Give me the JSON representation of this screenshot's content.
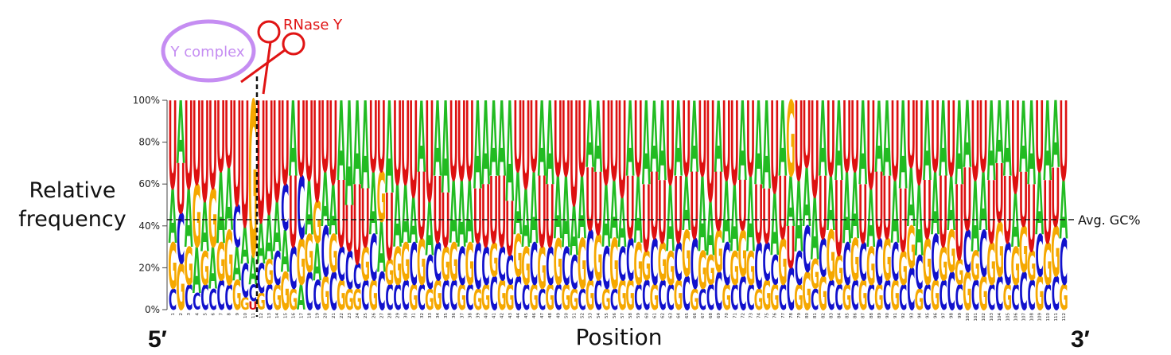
{
  "chart_data": {
    "type": "sequence-logo",
    "title": "",
    "xlabel": "Position",
    "ylabel_lines": [
      "Relative",
      "frequency"
    ],
    "y_ticks": [
      "0%",
      "20%",
      "40%",
      "60%",
      "80%",
      "100%"
    ],
    "ylim": [
      0,
      100
    ],
    "n_positions": 112,
    "x_tick_labels": [
      "1",
      "2",
      "3",
      "4",
      "5",
      "6",
      "7",
      "8",
      "9",
      "10",
      "11",
      "12",
      "13",
      "14",
      "15",
      "16",
      "17",
      "18",
      "19",
      "20",
      "21",
      "22",
      "23",
      "24",
      "25",
      "26",
      "27",
      "28",
      "29",
      "30",
      "31",
      "32",
      "33",
      "34",
      "35",
      "36",
      "37",
      "38",
      "39",
      "40",
      "41",
      "42",
      "43",
      "44",
      "45",
      "46",
      "47",
      "48",
      "49",
      "50",
      "51",
      "52",
      "53",
      "54",
      "55",
      "56",
      "57",
      "58",
      "59",
      "60",
      "61",
      "62",
      "63",
      "64",
      "65",
      "66",
      "67",
      "68",
      "69",
      "70",
      "71",
      "72",
      "73",
      "74",
      "75",
      "76",
      "77",
      "78",
      "79",
      "80",
      "81",
      "82",
      "83",
      "84",
      "85",
      "86",
      "87",
      "88",
      "89",
      "90",
      "91",
      "92",
      "93",
      "94",
      "95",
      "96",
      "97",
      "98",
      "99",
      "100",
      "101",
      "102",
      "103",
      "104",
      "105",
      "106",
      "107",
      "108",
      "109",
      "110",
      "111",
      "112"
    ],
    "end_labels": {
      "left": "5′",
      "right": "3′"
    },
    "reference_line": {
      "value": 43,
      "label": "Avg. GC%"
    },
    "cleavage_site": {
      "between_positions": [
        11,
        12
      ]
    },
    "annotations": {
      "enzyme": "RNase Y",
      "complex": "Y complex"
    },
    "base_colors": {
      "A": "#22bb22",
      "C": "#1111cc",
      "G": "#f5a800",
      "U": "#dd1111"
    },
    "positions": [
      {
        "pos": 1,
        "A": 26,
        "C": 10,
        "G": 22,
        "U": 42
      },
      {
        "pos": 2,
        "A": 30,
        "C": 24,
        "G": 22,
        "U": 24
      },
      {
        "pos": 3,
        "A": 28,
        "C": 12,
        "G": 18,
        "U": 42
      },
      {
        "pos": 4,
        "A": 22,
        "C": 8,
        "G": 30,
        "U": 40
      },
      {
        "pos": 5,
        "A": 24,
        "C": 12,
        "G": 16,
        "U": 48
      },
      {
        "pos": 6,
        "A": 20,
        "C": 10,
        "G": 28,
        "U": 42
      },
      {
        "pos": 7,
        "A": 34,
        "C": 14,
        "G": 18,
        "U": 34
      },
      {
        "pos": 8,
        "A": 30,
        "C": 12,
        "G": 26,
        "U": 32
      },
      {
        "pos": 9,
        "A": 16,
        "C": 20,
        "G": 14,
        "U": 50
      },
      {
        "pos": 10,
        "A": 18,
        "C": 16,
        "G": 6,
        "U": 60
      },
      {
        "pos": 11,
        "A": 14,
        "C": 8,
        "G": 74,
        "U": 4
      },
      {
        "pos": 12,
        "A": 20,
        "C": 14,
        "G": 8,
        "U": 58
      },
      {
        "pos": 13,
        "A": 22,
        "C": 12,
        "G": 12,
        "U": 54
      },
      {
        "pos": 14,
        "A": 24,
        "C": 16,
        "G": 12,
        "U": 48
      },
      {
        "pos": 15,
        "A": 20,
        "C": 22,
        "G": 18,
        "U": 40
      },
      {
        "pos": 16,
        "A": 36,
        "C": 20,
        "G": 10,
        "U": 34
      },
      {
        "pos": 17,
        "A": 12,
        "C": 30,
        "G": 22,
        "U": 36
      },
      {
        "pos": 18,
        "A": 26,
        "C": 18,
        "G": 18,
        "U": 38
      },
      {
        "pos": 19,
        "A": 18,
        "C": 14,
        "G": 20,
        "U": 48
      },
      {
        "pos": 20,
        "A": 26,
        "C": 24,
        "G": 16,
        "U": 34
      },
      {
        "pos": 21,
        "A": 24,
        "C": 18,
        "G": 18,
        "U": 40
      },
      {
        "pos": 22,
        "A": 38,
        "C": 16,
        "G": 14,
        "U": 32
      },
      {
        "pos": 23,
        "A": 50,
        "C": 18,
        "G": 10,
        "U": 22
      },
      {
        "pos": 24,
        "A": 40,
        "C": 12,
        "G": 10,
        "U": 38
      },
      {
        "pos": 25,
        "A": 42,
        "C": 14,
        "G": 16,
        "U": 28
      },
      {
        "pos": 26,
        "A": 30,
        "C": 22,
        "G": 14,
        "U": 34
      },
      {
        "pos": 27,
        "A": 24,
        "C": 18,
        "G": 24,
        "U": 34
      },
      {
        "pos": 28,
        "A": 44,
        "C": 12,
        "G": 12,
        "U": 32
      },
      {
        "pos": 29,
        "A": 30,
        "C": 12,
        "G": 18,
        "U": 40
      },
      {
        "pos": 30,
        "A": 28,
        "C": 14,
        "G": 18,
        "U": 40
      },
      {
        "pos": 31,
        "A": 22,
        "C": 20,
        "G": 12,
        "U": 46
      },
      {
        "pos": 32,
        "A": 34,
        "C": 12,
        "G": 22,
        "U": 32
      },
      {
        "pos": 33,
        "A": 26,
        "C": 16,
        "G": 10,
        "U": 48
      },
      {
        "pos": 34,
        "A": 36,
        "C": 18,
        "G": 14,
        "U": 32
      },
      {
        "pos": 35,
        "A": 44,
        "C": 14,
        "G": 16,
        "U": 26
      },
      {
        "pos": 36,
        "A": 30,
        "C": 14,
        "G": 18,
        "U": 38
      },
      {
        "pos": 37,
        "A": 32,
        "C": 18,
        "G": 12,
        "U": 38
      },
      {
        "pos": 38,
        "A": 30,
        "C": 12,
        "G": 20,
        "U": 38
      },
      {
        "pos": 39,
        "A": 42,
        "C": 22,
        "G": 10,
        "U": 26
      },
      {
        "pos": 40,
        "A": 40,
        "C": 18,
        "G": 12,
        "U": 30
      },
      {
        "pos": 41,
        "A": 36,
        "C": 16,
        "G": 16,
        "U": 32
      },
      {
        "pos": 42,
        "A": 36,
        "C": 16,
        "G": 14,
        "U": 34
      },
      {
        "pos": 43,
        "A": 48,
        "C": 14,
        "G": 12,
        "U": 26
      },
      {
        "pos": 44,
        "A": 30,
        "C": 16,
        "G": 20,
        "U": 34
      },
      {
        "pos": 45,
        "A": 28,
        "C": 12,
        "G": 18,
        "U": 42
      },
      {
        "pos": 46,
        "A": 34,
        "C": 20,
        "G": 12,
        "U": 34
      },
      {
        "pos": 47,
        "A": 36,
        "C": 10,
        "G": 20,
        "U": 34
      },
      {
        "pos": 48,
        "A": 40,
        "C": 18,
        "G": 12,
        "U": 30
      },
      {
        "pos": 49,
        "A": 30,
        "C": 12,
        "G": 22,
        "U": 36
      },
      {
        "pos": 50,
        "A": 34,
        "C": 18,
        "G": 12,
        "U": 36
      },
      {
        "pos": 51,
        "A": 24,
        "C": 16,
        "G": 10,
        "U": 50
      },
      {
        "pos": 52,
        "A": 30,
        "C": 10,
        "G": 24,
        "U": 36
      },
      {
        "pos": 53,
        "A": 32,
        "C": 24,
        "G": 14,
        "U": 30
      },
      {
        "pos": 54,
        "A": 34,
        "C": 14,
        "G": 22,
        "U": 30
      },
      {
        "pos": 55,
        "A": 30,
        "C": 20,
        "G": 10,
        "U": 40
      },
      {
        "pos": 56,
        "A": 28,
        "C": 10,
        "G": 24,
        "U": 38
      },
      {
        "pos": 57,
        "A": 24,
        "C": 16,
        "G": 14,
        "U": 46
      },
      {
        "pos": 58,
        "A": 36,
        "C": 20,
        "G": 14,
        "U": 30
      },
      {
        "pos": 59,
        "A": 32,
        "C": 12,
        "G": 20,
        "U": 36
      },
      {
        "pos": 60,
        "A": 40,
        "C": 14,
        "G": 14,
        "U": 32
      },
      {
        "pos": 61,
        "A": 34,
        "C": 22,
        "G": 12,
        "U": 32
      },
      {
        "pos": 62,
        "A": 38,
        "C": 14,
        "G": 18,
        "U": 30
      },
      {
        "pos": 63,
        "A": 32,
        "C": 12,
        "G": 16,
        "U": 40
      },
      {
        "pos": 64,
        "A": 36,
        "C": 18,
        "G": 14,
        "U": 32
      },
      {
        "pos": 65,
        "A": 26,
        "C": 16,
        "G": 22,
        "U": 36
      },
      {
        "pos": 66,
        "A": 34,
        "C": 24,
        "G": 10,
        "U": 32
      },
      {
        "pos": 67,
        "A": 36,
        "C": 10,
        "G": 18,
        "U": 36
      },
      {
        "pos": 68,
        "A": 26,
        "C": 12,
        "G": 14,
        "U": 48
      },
      {
        "pos": 69,
        "A": 34,
        "C": 18,
        "G": 20,
        "U": 28
      },
      {
        "pos": 70,
        "A": 30,
        "C": 20,
        "G": 12,
        "U": 38
      },
      {
        "pos": 71,
        "A": 32,
        "C": 12,
        "G": 16,
        "U": 40
      },
      {
        "pos": 72,
        "A": 38,
        "C": 16,
        "G": 22,
        "U": 24
      },
      {
        "pos": 73,
        "A": 36,
        "C": 12,
        "G": 16,
        "U": 36
      },
      {
        "pos": 74,
        "A": 40,
        "C": 22,
        "G": 10,
        "U": 28
      },
      {
        "pos": 75,
        "A": 42,
        "C": 18,
        "G": 14,
        "U": 26
      },
      {
        "pos": 76,
        "A": 30,
        "C": 14,
        "G": 12,
        "U": 44
      },
      {
        "pos": 77,
        "A": 36,
        "C": 12,
        "G": 22,
        "U": 30
      },
      {
        "pos": 78,
        "A": 24,
        "C": 20,
        "G": 36,
        "U": 20
      },
      {
        "pos": 79,
        "A": 34,
        "C": 16,
        "G": 12,
        "U": 38
      },
      {
        "pos": 80,
        "A": 28,
        "C": 22,
        "G": 18,
        "U": 32
      },
      {
        "pos": 81,
        "A": 30,
        "C": 10,
        "G": 14,
        "U": 46
      },
      {
        "pos": 82,
        "A": 36,
        "C": 18,
        "G": 16,
        "U": 30
      },
      {
        "pos": 83,
        "A": 26,
        "C": 14,
        "G": 24,
        "U": 36
      },
      {
        "pos": 84,
        "A": 38,
        "C": 12,
        "G": 14,
        "U": 36
      },
      {
        "pos": 85,
        "A": 34,
        "C": 20,
        "G": 12,
        "U": 34
      },
      {
        "pos": 86,
        "A": 32,
        "C": 14,
        "G": 20,
        "U": 34
      },
      {
        "pos": 87,
        "A": 40,
        "C": 18,
        "G": 14,
        "U": 28
      },
      {
        "pos": 88,
        "A": 28,
        "C": 12,
        "G": 18,
        "U": 42
      },
      {
        "pos": 89,
        "A": 34,
        "C": 22,
        "G": 12,
        "U": 32
      },
      {
        "pos": 90,
        "A": 36,
        "C": 14,
        "G": 20,
        "U": 30
      },
      {
        "pos": 91,
        "A": 30,
        "C": 18,
        "G": 14,
        "U": 38
      },
      {
        "pos": 92,
        "A": 42,
        "C": 12,
        "G": 16,
        "U": 30
      },
      {
        "pos": 93,
        "A": 28,
        "C": 20,
        "G": 20,
        "U": 32
      },
      {
        "pos": 94,
        "A": 34,
        "C": 16,
        "G": 10,
        "U": 40
      },
      {
        "pos": 95,
        "A": 38,
        "C": 12,
        "G": 22,
        "U": 28
      },
      {
        "pos": 96,
        "A": 30,
        "C": 22,
        "G": 14,
        "U": 34
      },
      {
        "pos": 97,
        "A": 36,
        "C": 14,
        "G": 16,
        "U": 34
      },
      {
        "pos": 98,
        "A": 26,
        "C": 18,
        "G": 20,
        "U": 36
      },
      {
        "pos": 99,
        "A": 40,
        "C": 12,
        "G": 12,
        "U": 36
      },
      {
        "pos": 100,
        "A": 32,
        "C": 20,
        "G": 18,
        "U": 30
      },
      {
        "pos": 101,
        "A": 34,
        "C": 14,
        "G": 14,
        "U": 38
      },
      {
        "pos": 102,
        "A": 28,
        "C": 22,
        "G": 16,
        "U": 34
      },
      {
        "pos": 103,
        "A": 38,
        "C": 12,
        "G": 20,
        "U": 30
      },
      {
        "pos": 104,
        "A": 30,
        "C": 16,
        "G": 26,
        "U": 28
      },
      {
        "pos": 105,
        "A": 36,
        "C": 20,
        "G": 12,
        "U": 32
      },
      {
        "pos": 106,
        "A": 26,
        "C": 12,
        "G": 18,
        "U": 44
      },
      {
        "pos": 107,
        "A": 34,
        "C": 18,
        "G": 22,
        "U": 26
      },
      {
        "pos": 108,
        "A": 40,
        "C": 14,
        "G": 14,
        "U": 32
      },
      {
        "pos": 109,
        "A": 30,
        "C": 20,
        "G": 16,
        "U": 34
      },
      {
        "pos": 110,
        "A": 38,
        "C": 12,
        "G": 20,
        "U": 30
      },
      {
        "pos": 111,
        "A": 32,
        "C": 16,
        "G": 24,
        "U": 28
      },
      {
        "pos": 112,
        "A": 28,
        "C": 22,
        "G": 12,
        "U": 38
      }
    ]
  }
}
